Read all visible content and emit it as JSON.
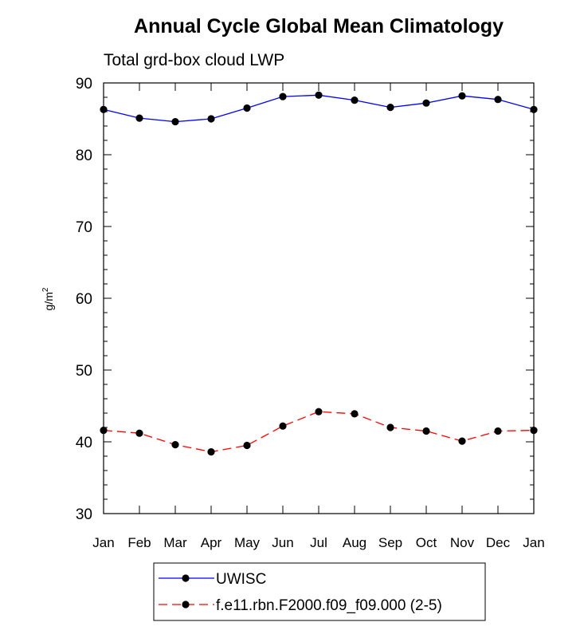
{
  "chart_data": {
    "type": "line",
    "title": "Annual Cycle Global Mean Climatology",
    "subtitle": "Total grd-box cloud LWP",
    "ylabel_base": "g/m",
    "ylabel_sup": "2",
    "categories": [
      "Jan",
      "Feb",
      "Mar",
      "Apr",
      "May",
      "Jun",
      "Jul",
      "Aug",
      "Sep",
      "Oct",
      "Nov",
      "Dec",
      "Jan"
    ],
    "ylim": [
      30,
      90
    ],
    "yticks": [
      30,
      40,
      50,
      60,
      70,
      80,
      90
    ],
    "grid": false,
    "legend_position": "bottom",
    "series": [
      {
        "name": "UWISC",
        "color": "#0000ff",
        "dash": "solid",
        "marker": "filled-circle",
        "values": [
          86.3,
          85.1,
          84.6,
          85.0,
          86.5,
          88.1,
          88.3,
          87.6,
          86.6,
          87.2,
          88.2,
          87.7,
          86.3
        ]
      },
      {
        "name": "f.e11.rbn.F2000.f09_f09.000 (2-5)",
        "color": "#ff0000",
        "dash": "dashed",
        "marker": "filled-circle",
        "values": [
          41.6,
          41.2,
          39.6,
          38.6,
          39.5,
          42.2,
          44.2,
          43.9,
          42.0,
          41.5,
          40.1,
          41.5,
          41.6
        ]
      }
    ]
  }
}
